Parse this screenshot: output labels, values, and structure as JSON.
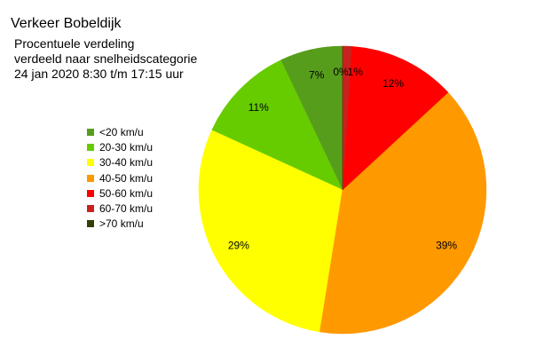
{
  "chart_data": {
    "type": "pie",
    "title": "Verkeer Bobeldijk",
    "subtitle": [
      "Procentuele verdeling",
      "verdeeld naar snelheidscategorie",
      "24 jan 2020 8:30 t/m 17:15 uur"
    ],
    "categories": [
      "<20 km/u",
      "20-30 km/u",
      "30-40 km/u",
      "40-50 km/u",
      "50-60 km/u",
      "60-70 km/u",
      ">70 km/u"
    ],
    "values": [
      7,
      11,
      29,
      39,
      12,
      1,
      0
    ],
    "value_labels": [
      "7%",
      "11%",
      "29%",
      "39%",
      "12%",
      "1%",
      "0%"
    ],
    "colors": [
      "#579d1c",
      "#66cc00",
      "#ffff00",
      "#ff9900",
      "#ff0000",
      "#c9211e",
      "#314004"
    ],
    "legend_position": "left",
    "start_angle": "12 o'clock",
    "direction": "counterclockwise from <20 km/u",
    "edge_color": "#ffffff"
  }
}
